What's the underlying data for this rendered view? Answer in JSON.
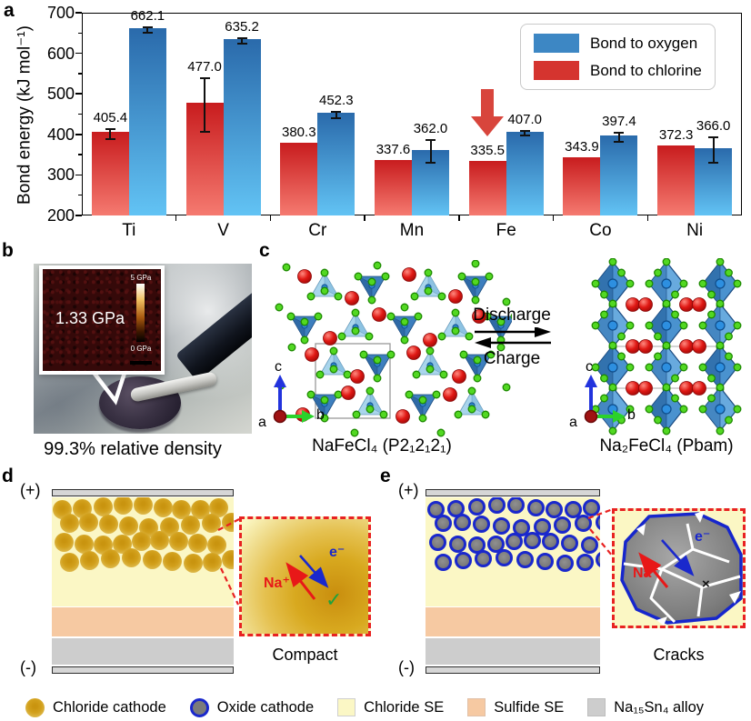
{
  "figure": {
    "panels": {
      "a": "a",
      "b": "b",
      "c": "c",
      "d": "d",
      "e": "e"
    }
  },
  "chart_data": {
    "type": "bar",
    "title": "",
    "ylabel": "Bond energy (kJ mol⁻¹)",
    "xlabel": "",
    "ylim": [
      200,
      700
    ],
    "ytick_major_step": 100,
    "ytick_minor_step": 50,
    "grid": false,
    "legend_position": "top-right",
    "categories": [
      "Ti",
      "V",
      "Cr",
      "Mn",
      "Fe",
      "Co",
      "Ni"
    ],
    "series": [
      {
        "name": "Bond to chlorine",
        "values": [
          405.4,
          477.0,
          380.3,
          337.6,
          335.5,
          343.9,
          372.3
        ],
        "errors": [
          10,
          63,
          0,
          0,
          0,
          0,
          0
        ],
        "color_top": "#c81c1e",
        "color_bottom": "#f57a70"
      },
      {
        "name": "Bond to oxygen",
        "values": [
          662.1,
          635.2,
          452.3,
          362.0,
          407.0,
          397.4,
          366.0
        ],
        "errors": [
          4,
          4,
          5,
          26,
          4,
          9,
          30
        ],
        "color_top": "#2a6aab",
        "color_bottom": "#62c3f4"
      }
    ],
    "legend": [
      {
        "label": "Bond to oxygen",
        "color": "#3d87c4"
      },
      {
        "label": "Bond to chlorine",
        "color": "#d5342f"
      }
    ],
    "highlight_arrow": {
      "category": "Fe",
      "series": "Bond to chlorine",
      "color": "#d8453c"
    }
  },
  "panel_b": {
    "inset_value": "1.33 GPa",
    "scale_max": "5 GPa",
    "scale_min": "0 GPa",
    "caption": "99.3% relative density"
  },
  "panel_c": {
    "forward_label": "Discharge",
    "backward_label": "Charge",
    "left_formula": "NaFeCl₄ (P2₁2₁2₁)",
    "right_formula": "Na₂FeCl₄ (Pbam)",
    "axes": {
      "up": "c",
      "right": "b",
      "origin": "a"
    }
  },
  "panel_d": {
    "top_electrode": "(+)",
    "bottom_electrode": "(-)",
    "ion_label": "Na⁺",
    "electron_label": "e⁻",
    "status_mark": "✓",
    "inset_caption": "Compact"
  },
  "panel_e": {
    "top_electrode": "(+)",
    "bottom_electrode": "(-)",
    "ion_label": "Na⁺",
    "electron_label": "e⁻",
    "status_mark": "×",
    "inset_caption": "Cracks"
  },
  "bottom_legend": {
    "items": [
      {
        "label": "Chloride cathode",
        "swatch": "chloride-cathode"
      },
      {
        "label": "Oxide cathode",
        "swatch": "oxide-cathode"
      },
      {
        "label": "Chloride SE",
        "swatch": "chloride-se"
      },
      {
        "label": "Sulfide SE",
        "swatch": "sulfide-se"
      },
      {
        "label": "Na₁₅Sn₄ alloy",
        "swatch": "alloy"
      }
    ]
  },
  "colors": {
    "bar_red_top": "#c81c1e",
    "bar_red_bottom": "#f57a70",
    "bar_blue_top": "#2a6aab",
    "bar_blue_bottom": "#62c3f4",
    "highlight_arrow": "#d8453c",
    "chloride_cathode": "#d2a01c",
    "oxide_cathode_fill": "#7b7b7b",
    "oxide_cathode_ring": "#1a28cc",
    "chloride_se": "#fbf7c5",
    "sulfide_se": "#f6c9a2",
    "alloy": "#cdcdcd",
    "electrode": "#d6d6d6",
    "inset_border": "#e82222",
    "na_label": "#e81818",
    "electron_label": "#1a28cc"
  }
}
